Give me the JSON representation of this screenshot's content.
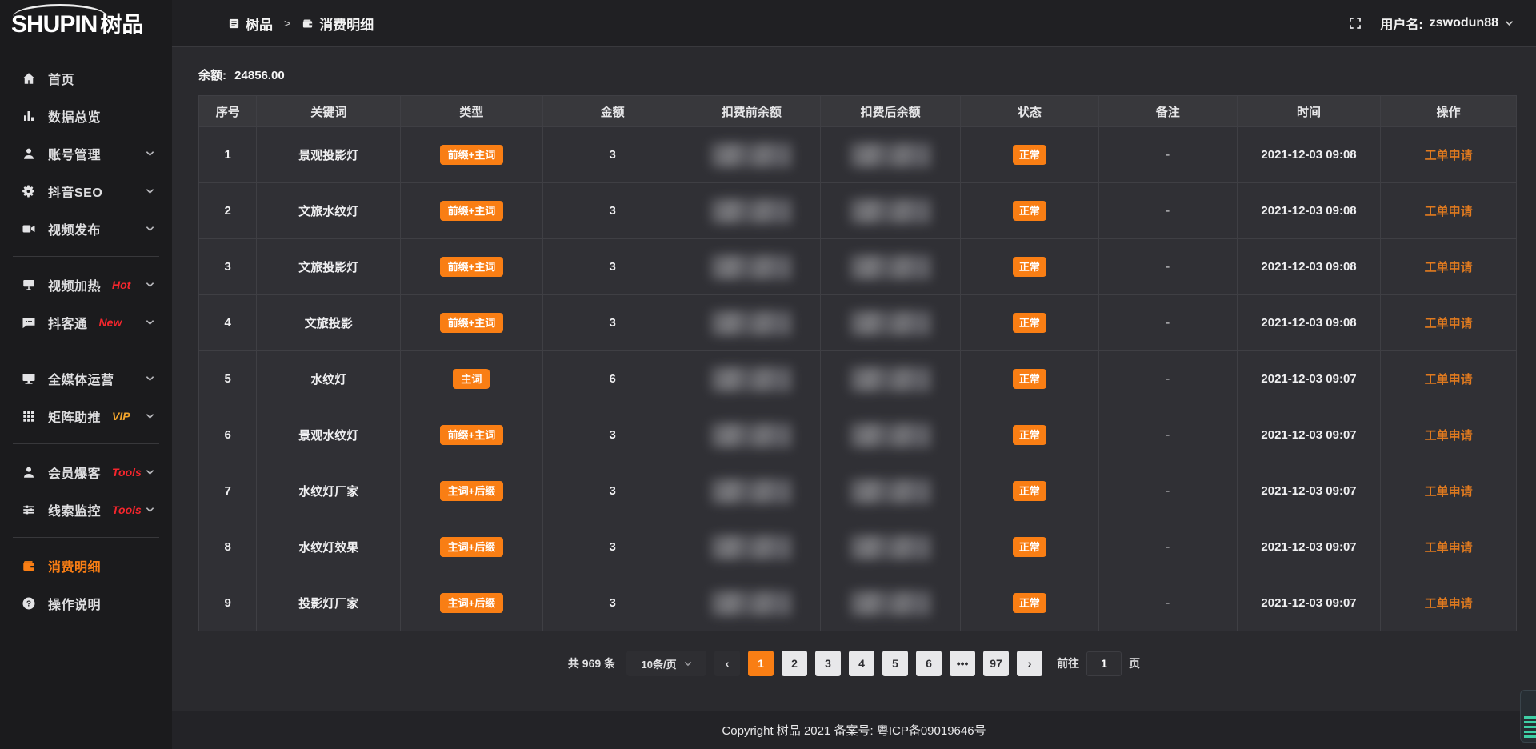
{
  "app": {
    "logo_en": "SHUPIN",
    "logo_cn": "树品"
  },
  "topbar": {
    "breadcrumb": [
      {
        "label": "树品"
      },
      {
        "label": "消费明细"
      }
    ],
    "breadcrumb_separator": ">",
    "username_label": "用户名:",
    "username": "zswodun88"
  },
  "sidebar": {
    "items": [
      {
        "id": "home",
        "icon": "home",
        "label": "首页"
      },
      {
        "id": "data-overview",
        "icon": "chart",
        "label": "数据总览"
      },
      {
        "id": "account-manage",
        "icon": "user",
        "label": "账号管理",
        "expandable": true
      },
      {
        "id": "douyin-seo",
        "icon": "gear",
        "label": "抖音SEO",
        "expandable": true
      },
      {
        "id": "video-publish",
        "icon": "video",
        "label": "视频发布",
        "expandable": true,
        "divider_after": true
      },
      {
        "id": "video-heat",
        "icon": "projector",
        "label": "视频加热",
        "badge": "Hot",
        "badge_color": "red",
        "expandable": true
      },
      {
        "id": "douketong",
        "icon": "chat",
        "label": "抖客通",
        "badge": "New",
        "badge_color": "red",
        "expandable": true,
        "divider_after": true
      },
      {
        "id": "all-media-ops",
        "icon": "monitor",
        "label": "全媒体运营",
        "expandable": true
      },
      {
        "id": "matrix-boost",
        "icon": "grid",
        "label": "矩阵助推",
        "badge": "VIP",
        "badge_color": "gold",
        "expandable": true,
        "divider_after": true
      },
      {
        "id": "member-baoke",
        "icon": "user",
        "label": "会员爆客",
        "badge": "Tools",
        "badge_color": "red",
        "expandable": true
      },
      {
        "id": "lead-monitor",
        "icon": "sliders",
        "label": "线索监控",
        "badge": "Tools",
        "badge_color": "red",
        "expandable": true,
        "divider_after": true
      },
      {
        "id": "consume-detail",
        "icon": "wallet",
        "label": "消费明细",
        "active": true
      },
      {
        "id": "operation-guide",
        "icon": "question",
        "label": "操作说明"
      }
    ]
  },
  "main": {
    "balance_label": "余额:",
    "balance_value": "24856.00",
    "table": {
      "columns": [
        "序号",
        "关键词",
        "类型",
        "金额",
        "扣费前余额",
        "扣费后余额",
        "状态",
        "备注",
        "时间",
        "操作"
      ],
      "redacted_columns": [
        "扣费前余额",
        "扣费后余额"
      ],
      "rows": [
        {
          "no": "1",
          "keyword": "景观投影灯",
          "type": "前缀+主词",
          "amount": "3",
          "status": "正常",
          "remark": "-",
          "time": "2021-12-03 09:08",
          "action": "工单申请"
        },
        {
          "no": "2",
          "keyword": "文旅水纹灯",
          "type": "前缀+主词",
          "amount": "3",
          "status": "正常",
          "remark": "-",
          "time": "2021-12-03 09:08",
          "action": "工单申请"
        },
        {
          "no": "3",
          "keyword": "文旅投影灯",
          "type": "前缀+主词",
          "amount": "3",
          "status": "正常",
          "remark": "-",
          "time": "2021-12-03 09:08",
          "action": "工单申请"
        },
        {
          "no": "4",
          "keyword": "文旅投影",
          "type": "前缀+主词",
          "amount": "3",
          "status": "正常",
          "remark": "-",
          "time": "2021-12-03 09:08",
          "action": "工单申请"
        },
        {
          "no": "5",
          "keyword": "水纹灯",
          "type": "主词",
          "amount": "6",
          "status": "正常",
          "remark": "-",
          "time": "2021-12-03 09:07",
          "action": "工单申请"
        },
        {
          "no": "6",
          "keyword": "景观水纹灯",
          "type": "前缀+主词",
          "amount": "3",
          "status": "正常",
          "remark": "-",
          "time": "2021-12-03 09:07",
          "action": "工单申请"
        },
        {
          "no": "7",
          "keyword": "水纹灯厂家",
          "type": "主词+后缀",
          "amount": "3",
          "status": "正常",
          "remark": "-",
          "time": "2021-12-03 09:07",
          "action": "工单申请"
        },
        {
          "no": "8",
          "keyword": "水纹灯效果",
          "type": "主词+后缀",
          "amount": "3",
          "status": "正常",
          "remark": "-",
          "time": "2021-12-03 09:07",
          "action": "工单申请"
        },
        {
          "no": "9",
          "keyword": "投影灯厂家",
          "type": "主词+后缀",
          "amount": "3",
          "status": "正常",
          "remark": "-",
          "time": "2021-12-03 09:07",
          "action": "工单申请"
        }
      ]
    },
    "pagination": {
      "total": "共 969 条",
      "page_size": "10条/页",
      "prev_icon": "‹",
      "next_icon": "›",
      "pages": [
        "1",
        "2",
        "3",
        "4",
        "5",
        "6",
        "•••",
        "97"
      ],
      "active_page": "1",
      "goto_label": "前往",
      "goto_value": "1",
      "goto_suffix": "页"
    }
  },
  "footer": {
    "copyright": "Copyright 树品 2021 备案号: 粤ICP备09019646号"
  },
  "colors": {
    "accent": "#f97e14",
    "link_orange": "#e07a1f",
    "hot_red": "#f5262d",
    "vip_gold": "#f2a42c",
    "sidebar_bg": "#1b1b1d",
    "row_bg": "#303035",
    "header_bg": "#38383c"
  }
}
